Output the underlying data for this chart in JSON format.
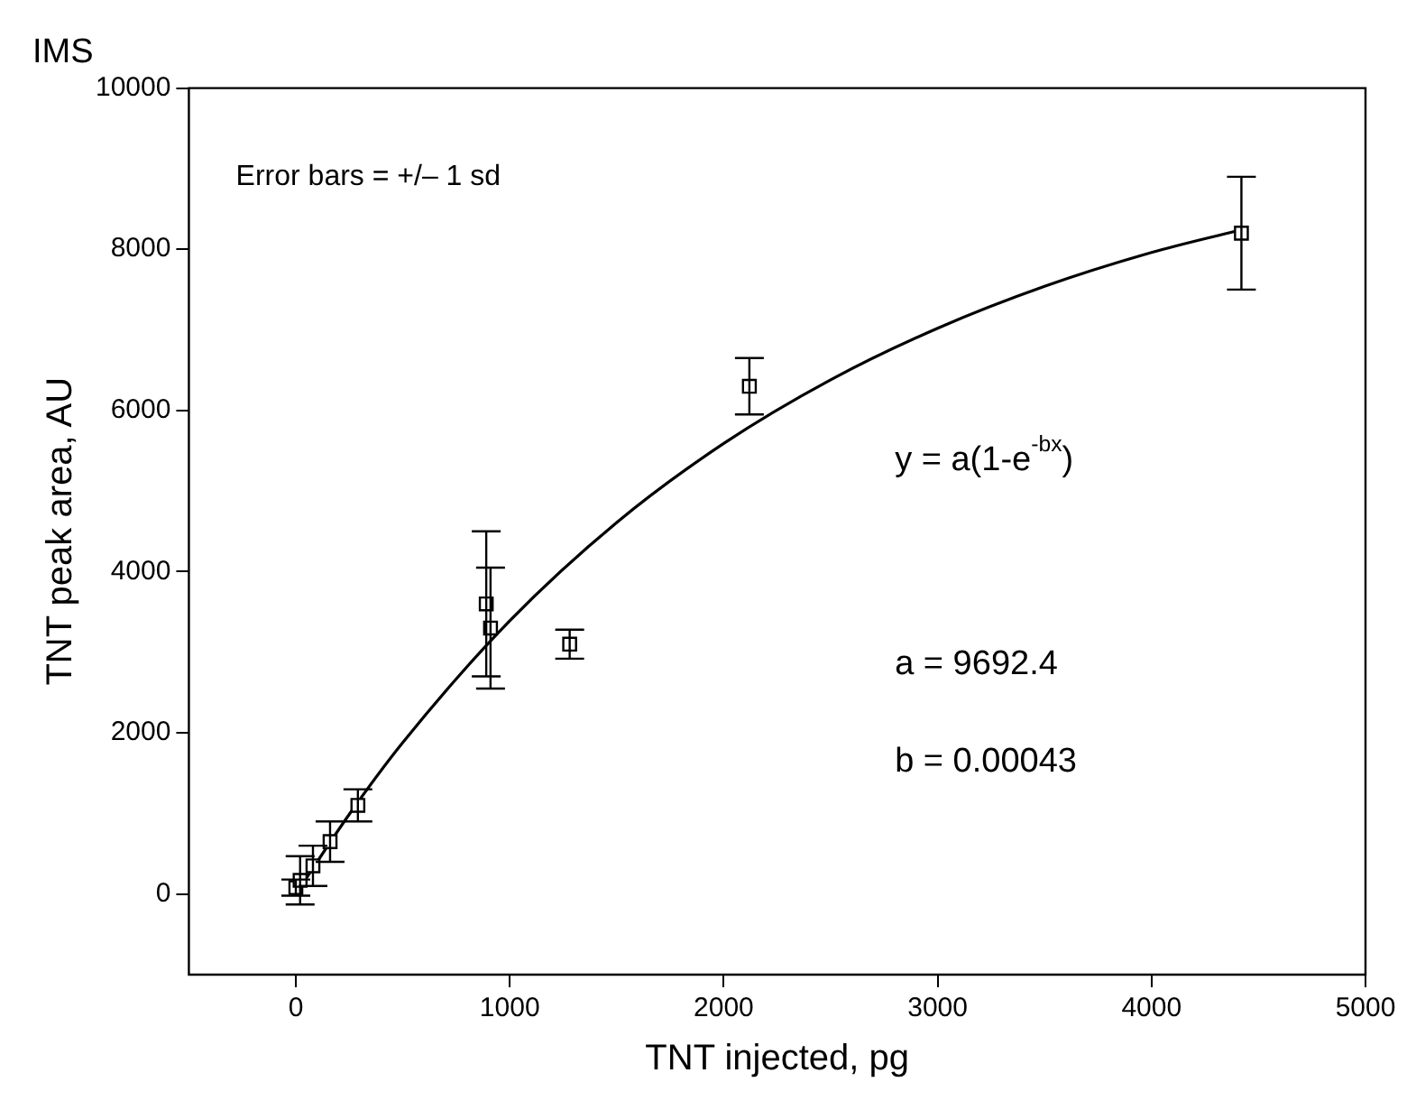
{
  "chart_data": {
    "type": "scatter",
    "title": "IMS",
    "xlabel": "TNT injected, pg",
    "ylabel": "TNT peak area, AU",
    "xlim": [
      -500,
      5000
    ],
    "xticks": [
      0,
      1000,
      2000,
      3000,
      4000,
      5000
    ],
    "ylim": [
      -1000,
      10000
    ],
    "yticks": [
      0,
      2000,
      4000,
      6000,
      8000,
      10000
    ],
    "grid": false,
    "legend": false,
    "series": [
      {
        "type": "scatter",
        "color": "#000000",
        "marker": "square",
        "x": [
          0,
          20,
          80,
          160,
          290,
          890,
          910,
          1280,
          2120,
          4420
        ],
        "values": [
          80,
          170,
          350,
          650,
          1100,
          3600,
          3300,
          3100,
          6300,
          8200
        ],
        "errors": [
          100,
          300,
          250,
          250,
          200,
          900,
          750,
          180,
          350,
          700
        ]
      },
      {
        "type": "line",
        "color": "#000000",
        "marker": "none",
        "line_style": "solid",
        "x": [
          0,
          250,
          500,
          1000,
          1500,
          2000,
          2500,
          3000,
          3500,
          4000,
          4400
        ],
        "values": [
          0,
          990,
          1880,
          3390,
          4610,
          5590,
          6380,
          7020,
          7540,
          7960,
          8230
        ]
      }
    ],
    "annotations": [
      "Error bars = +/– 1 sd",
      "y = a(1-e$^{-bx}$)",
      "a = 9692.4",
      "b = 0.00043"
    ]
  }
}
